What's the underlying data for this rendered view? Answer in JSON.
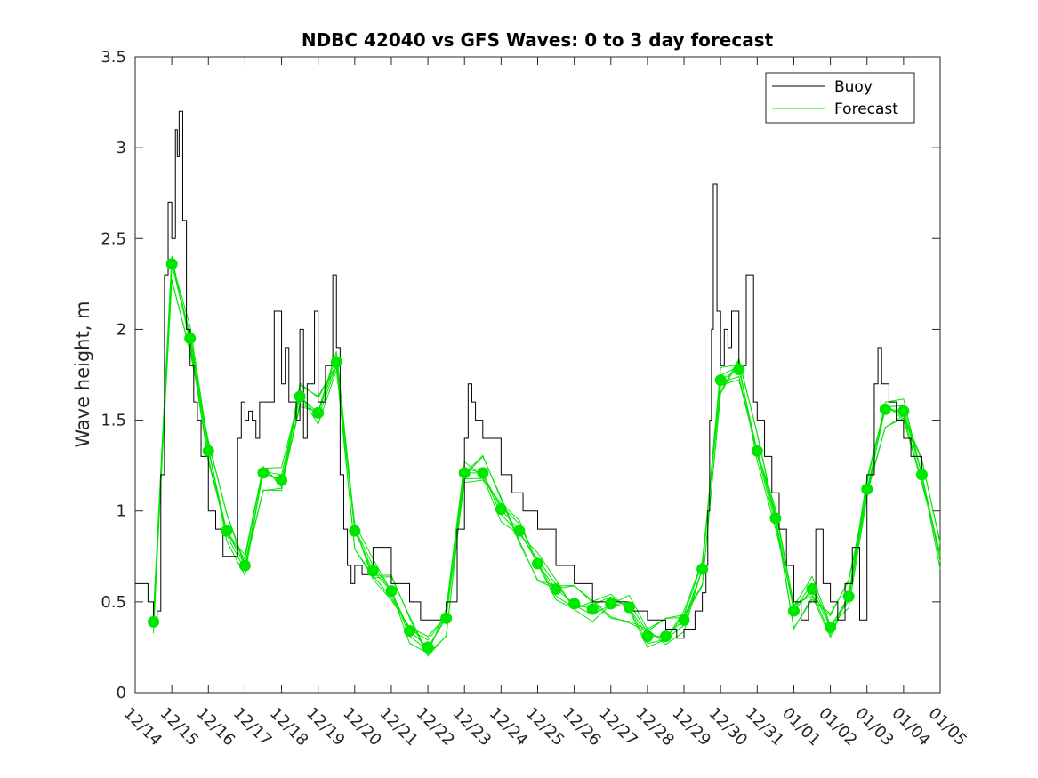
{
  "chart_data": {
    "type": "line",
    "title": "NDBC 42040 vs GFS Waves: 0 to 3 day forecast",
    "xlabel": "",
    "ylabel": "Wave height, m",
    "x_tick_labels": [
      "12/14",
      "12/15",
      "12/16",
      "12/17",
      "12/18",
      "12/19",
      "12/20",
      "12/21",
      "12/22",
      "12/23",
      "12/24",
      "12/25",
      "12/26",
      "12/27",
      "12/28",
      "12/29",
      "12/30",
      "12/31",
      "01/01",
      "01/02",
      "01/03",
      "01/04",
      "01/05"
    ],
    "y_ticks": [
      0,
      0.5,
      1,
      1.5,
      2,
      2.5,
      3,
      3.5
    ],
    "xlim": [
      0,
      22
    ],
    "ylim": [
      0,
      3.5
    ],
    "legend": {
      "position": "top-right",
      "entries": [
        "Buoy",
        "Forecast"
      ]
    },
    "colors": {
      "buoy": "#000000",
      "forecast": "#00e600",
      "marker": "#00e600",
      "axes": "#262626"
    },
    "series": [
      {
        "name": "Buoy",
        "x": [
          0,
          0.3,
          0.35,
          0.5,
          0.6,
          0.7,
          0.8,
          0.9,
          1.0,
          1.1,
          1.15,
          1.2,
          1.3,
          1.4,
          1.5,
          1.6,
          1.7,
          1.8,
          2.0,
          2.2,
          2.4,
          2.6,
          2.8,
          2.9,
          3.0,
          3.1,
          3.2,
          3.3,
          3.4,
          3.6,
          3.8,
          4.0,
          4.1,
          4.2,
          4.4,
          4.5,
          4.6,
          4.7,
          4.9,
          5.0,
          5.2,
          5.4,
          5.5,
          5.6,
          5.7,
          5.8,
          5.9,
          6.0,
          6.2,
          6.5,
          7.0,
          7.5,
          7.8,
          8.0,
          8.2,
          8.5,
          8.8,
          9.0,
          9.1,
          9.2,
          9.3,
          9.5,
          9.7,
          10.0,
          10.3,
          10.6,
          11.0,
          11.5,
          12.0,
          12.5,
          13.0,
          13.5,
          14.0,
          14.5,
          14.8,
          15.0,
          15.3,
          15.5,
          15.6,
          15.65,
          15.7,
          15.75,
          15.8,
          15.9,
          16.0,
          16.1,
          16.2,
          16.3,
          16.5,
          16.7,
          16.9,
          17.0,
          17.2,
          17.4,
          17.6,
          17.8,
          18.0,
          18.2,
          18.4,
          18.6,
          18.8,
          19.0,
          19.2,
          19.4,
          19.6,
          19.8,
          20.0,
          20.2,
          20.3,
          20.4,
          20.6,
          20.8,
          21.0,
          21.2,
          21.5
        ],
        "values": [
          0.6,
          0.6,
          0.5,
          0.4,
          0.45,
          1.2,
          2.3,
          2.7,
          2.5,
          3.1,
          2.95,
          3.2,
          2.6,
          2.0,
          1.8,
          1.6,
          1.5,
          1.3,
          1.0,
          0.9,
          0.75,
          0.75,
          1.4,
          1.6,
          1.5,
          1.55,
          1.5,
          1.4,
          1.6,
          1.6,
          2.1,
          1.7,
          1.9,
          1.6,
          1.5,
          2.0,
          1.4,
          1.7,
          2.1,
          1.6,
          1.8,
          2.3,
          1.9,
          1.2,
          0.9,
          0.7,
          0.6,
          0.7,
          0.65,
          0.8,
          0.6,
          0.5,
          0.4,
          0.4,
          0.4,
          0.5,
          0.9,
          1.4,
          1.7,
          1.6,
          1.5,
          1.4,
          1.4,
          1.2,
          1.1,
          1.0,
          0.9,
          0.7,
          0.6,
          0.5,
          0.5,
          0.45,
          0.4,
          0.35,
          0.3,
          0.35,
          0.45,
          0.55,
          0.7,
          1.0,
          1.5,
          2.0,
          2.8,
          2.1,
          1.8,
          2.0,
          1.9,
          2.1,
          1.8,
          2.3,
          1.6,
          1.5,
          1.3,
          1.1,
          0.9,
          0.7,
          0.5,
          0.4,
          0.5,
          0.9,
          0.6,
          0.5,
          0.4,
          0.6,
          0.8,
          0.4,
          1.2,
          1.7,
          1.9,
          1.7,
          1.6,
          1.5,
          1.4,
          1.3,
          1.2
        ]
      },
      {
        "name": "Forecast",
        "x": [
          0.5,
          1.0,
          1.5,
          2.0,
          2.5,
          3.0,
          3.5,
          4.0,
          4.5,
          5.0,
          5.5,
          6.0,
          6.5,
          7.0,
          7.5,
          8.0,
          8.5,
          9.0,
          9.5,
          10.0,
          10.5,
          11.0,
          11.5,
          12.0,
          12.5,
          13.0,
          13.5,
          14.0,
          14.5,
          15.0,
          15.5,
          16.0,
          16.5,
          17.0,
          17.5,
          18.0,
          18.5,
          19.0,
          19.5,
          20.0,
          20.5,
          21.0,
          21.5,
          22.0
        ],
        "values": [
          0.39,
          2.36,
          1.95,
          1.33,
          0.89,
          0.7,
          1.21,
          1.17,
          1.63,
          1.54,
          1.82,
          0.89,
          0.67,
          0.56,
          0.34,
          0.25,
          0.41,
          1.21,
          1.21,
          1.01,
          0.89,
          0.71,
          0.57,
          0.49,
          0.46,
          0.49,
          0.47,
          0.31,
          0.31,
          0.4,
          0.68,
          1.72,
          1.78,
          1.33,
          0.96,
          0.45,
          0.57,
          0.36,
          0.53,
          1.12,
          1.56,
          1.55,
          1.2,
          0.75
        ]
      }
    ]
  }
}
